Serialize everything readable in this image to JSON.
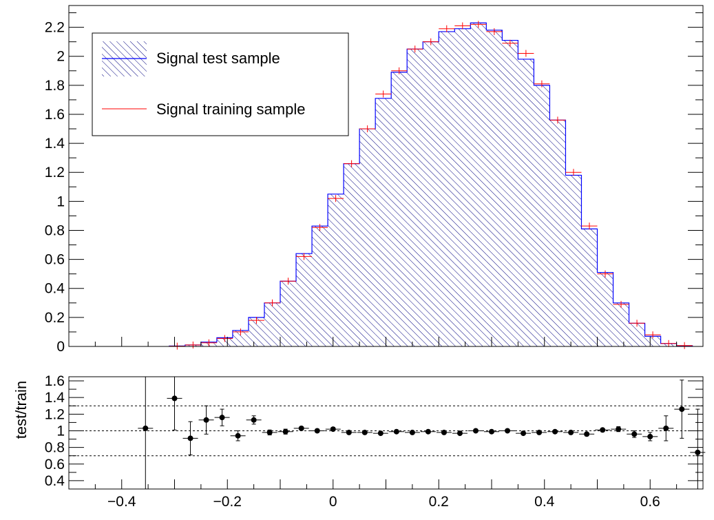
{
  "chart_data": [
    {
      "type": "histogram",
      "ylim": [
        0,
        2.35
      ],
      "xlim": [
        -0.5,
        0.7
      ],
      "yticks": [
        "0",
        "0.2",
        "0.4",
        "0.6",
        "0.8",
        "1",
        "1.2",
        "1.4",
        "1.6",
        "1.8",
        "2",
        "2.2"
      ],
      "legend": {
        "placement": "top-left",
        "entries": [
          "Signal test sample",
          "Signal training sample"
        ]
      },
      "colors": {
        "test": "#0000ff",
        "train": "#ff0000",
        "hatch": "#000080"
      },
      "bin_edges": [
        -0.31,
        -0.28,
        -0.25,
        -0.22,
        -0.19,
        -0.16,
        -0.13,
        -0.1,
        -0.07,
        -0.04,
        -0.01,
        0.02,
        0.05,
        0.08,
        0.11,
        0.14,
        0.17,
        0.2,
        0.23,
        0.26,
        0.29,
        0.32,
        0.35,
        0.38,
        0.41,
        0.44,
        0.47,
        0.5,
        0.53,
        0.56,
        0.59,
        0.62,
        0.65,
        0.68
      ],
      "series": [
        {
          "name": "Signal test sample",
          "style": "filled-hatched",
          "values": [
            0.003,
            0.01,
            0.03,
            0.06,
            0.11,
            0.2,
            0.3,
            0.45,
            0.64,
            0.83,
            1.05,
            1.26,
            1.5,
            1.71,
            1.89,
            2.05,
            2.1,
            2.17,
            2.19,
            2.23,
            2.18,
            2.11,
            1.98,
            1.8,
            1.56,
            1.18,
            0.81,
            0.51,
            0.3,
            0.16,
            0.07,
            0.02,
            0.005
          ]
        },
        {
          "name": "Signal training sample",
          "style": "points-with-errors",
          "values": [
            0.002,
            0.01,
            0.025,
            0.055,
            0.1,
            0.18,
            0.3,
            0.45,
            0.62,
            0.82,
            1.02,
            1.26,
            1.5,
            1.74,
            1.9,
            2.05,
            2.1,
            2.19,
            2.21,
            2.22,
            2.17,
            2.09,
            2.02,
            1.81,
            1.56,
            1.2,
            0.83,
            0.5,
            0.29,
            0.16,
            0.08,
            0.02,
            0.006
          ]
        }
      ]
    },
    {
      "type": "scatter",
      "ylabel": "test/train",
      "ylim": [
        0.3,
        1.65
      ],
      "xlim": [
        -0.5,
        0.7
      ],
      "yticks": [
        "0.4",
        "0.6",
        "0.8",
        "1",
        "1.2",
        "1.4",
        "1.6"
      ],
      "xticks": [
        "−0.4",
        "−0.2",
        "0",
        "0.2",
        "0.4",
        "0.6"
      ],
      "reference_lines": [
        0.7,
        1.0,
        1.3
      ],
      "x": [
        -0.355,
        -0.3,
        -0.27,
        -0.24,
        -0.21,
        -0.18,
        -0.15,
        -0.12,
        -0.09,
        -0.06,
        -0.03,
        0.0,
        0.03,
        0.06,
        0.09,
        0.12,
        0.15,
        0.18,
        0.21,
        0.24,
        0.27,
        0.3,
        0.33,
        0.36,
        0.39,
        0.42,
        0.45,
        0.48,
        0.51,
        0.54,
        0.57,
        0.6,
        0.63,
        0.66,
        0.69
      ],
      "values": [
        1.03,
        1.39,
        0.91,
        1.13,
        1.16,
        0.94,
        1.13,
        0.98,
        0.99,
        1.03,
        1.0,
        1.02,
        0.98,
        0.98,
        0.97,
        0.99,
        0.98,
        0.99,
        0.98,
        0.97,
        1.0,
        0.99,
        1.0,
        0.97,
        0.98,
        0.99,
        0.98,
        0.96,
        1.01,
        1.02,
        0.96,
        0.93,
        1.03,
        1.26,
        0.74
      ],
      "y_errors": [
        0.85,
        0.38,
        0.2,
        0.17,
        0.1,
        0.06,
        0.05,
        0.03,
        0.03,
        0.02,
        0.02,
        0.02,
        0.01,
        0.01,
        0.01,
        0.01,
        0.01,
        0.01,
        0.01,
        0.01,
        0.01,
        0.01,
        0.01,
        0.01,
        0.01,
        0.01,
        0.02,
        0.02,
        0.02,
        0.03,
        0.04,
        0.05,
        0.15,
        0.35,
        0.52
      ]
    }
  ]
}
